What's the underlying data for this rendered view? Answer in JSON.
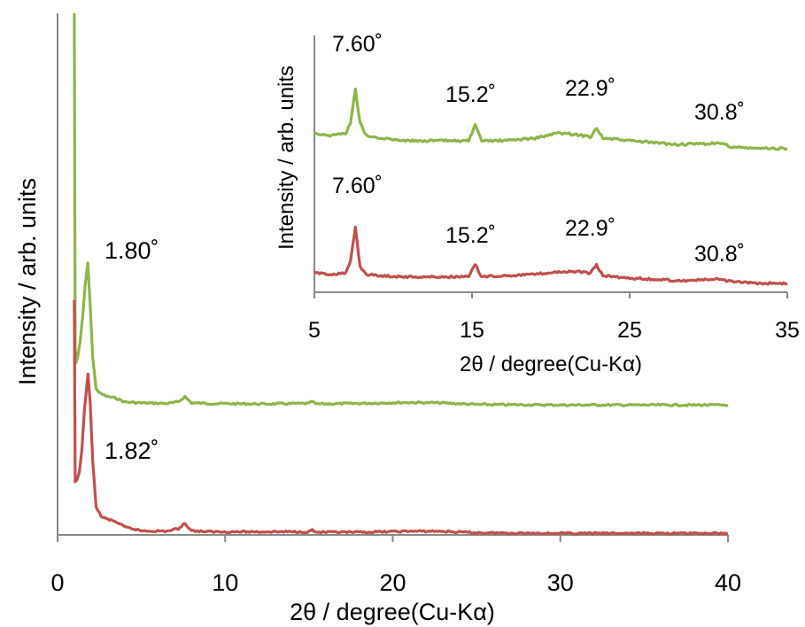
{
  "chart_data": [
    {
      "type": "line",
      "id": "main",
      "xlabel": "2θ / degree(Cu-Kα)",
      "ylabel": "Intensity / arb. units",
      "xlim": [
        0,
        40
      ],
      "xticks": [
        "0",
        "10",
        "20",
        "30",
        "40"
      ],
      "ylim": [
        0,
        1
      ],
      "grid": false,
      "legend": "none",
      "series": [
        {
          "color": "#8db44a",
          "x": [
            1.0,
            1.05,
            1.1,
            1.2,
            1.35,
            1.5,
            1.65,
            1.8,
            1.95,
            2.1,
            2.3,
            2.6,
            3.0,
            3.5,
            4.0,
            5.0,
            6.5,
            7.2,
            7.6,
            8.0,
            9.0,
            12.0,
            15.0,
            15.2,
            15.4,
            18.0,
            21.0,
            22.9,
            25.0,
            30.0,
            35.0,
            40.0
          ],
          "y": [
            1.0,
            0.36,
            0.33,
            0.34,
            0.37,
            0.42,
            0.48,
            0.52,
            0.44,
            0.34,
            0.28,
            0.27,
            0.265,
            0.262,
            0.255,
            0.253,
            0.252,
            0.255,
            0.265,
            0.253,
            0.252,
            0.251,
            0.252,
            0.256,
            0.251,
            0.252,
            0.254,
            0.253,
            0.25,
            0.249,
            0.249,
            0.249
          ]
        },
        {
          "color": "#c0504d",
          "x": [
            1.0,
            1.05,
            1.15,
            1.3,
            1.45,
            1.6,
            1.82,
            1.95,
            2.1,
            2.3,
            2.6,
            3.0,
            3.5,
            4.0,
            5.0,
            6.5,
            7.2,
            7.6,
            8.0,
            9.0,
            12.0,
            15.0,
            15.2,
            15.4,
            18.0,
            21.0,
            22.9,
            25.0,
            30.0,
            35.0,
            40.0
          ],
          "y": [
            0.45,
            0.1,
            0.105,
            0.12,
            0.16,
            0.24,
            0.31,
            0.25,
            0.14,
            0.055,
            0.035,
            0.03,
            0.025,
            0.015,
            0.008,
            0.007,
            0.012,
            0.022,
            0.008,
            0.006,
            0.006,
            0.006,
            0.01,
            0.005,
            0.005,
            0.007,
            0.007,
            0.004,
            0.003,
            0.003,
            0.003
          ]
        }
      ],
      "annotations": [
        {
          "text": "1.80˚",
          "x": 1.8
        },
        {
          "text": "1.82˚",
          "x": 1.82
        }
      ]
    },
    {
      "type": "line",
      "id": "inset",
      "xlabel": "2θ / degree(Cu-Kα)",
      "ylabel": "Intensity / arb. units",
      "xlim": [
        5,
        35
      ],
      "xticks": [
        "5",
        "15",
        "25",
        "35"
      ],
      "ylim": [
        0,
        1
      ],
      "grid": false,
      "legend": "none",
      "series": [
        {
          "color": "#8db44a",
          "x": [
            5.0,
            6.0,
            7.0,
            7.3,
            7.6,
            7.9,
            8.3,
            9.0,
            11.0,
            13.0,
            14.8,
            15.2,
            15.6,
            17.0,
            19.0,
            20.5,
            21.5,
            22.5,
            22.9,
            23.3,
            25.0,
            28.0,
            30.8,
            31.5,
            33.0,
            35.0
          ],
          "y": [
            0.62,
            0.61,
            0.62,
            0.66,
            0.79,
            0.66,
            0.61,
            0.6,
            0.59,
            0.59,
            0.59,
            0.65,
            0.59,
            0.59,
            0.6,
            0.62,
            0.615,
            0.605,
            0.64,
            0.6,
            0.59,
            0.575,
            0.58,
            0.565,
            0.56,
            0.56
          ]
        },
        {
          "color": "#c0504d",
          "x": [
            5.0,
            6.0,
            7.0,
            7.3,
            7.6,
            7.9,
            8.3,
            9.0,
            11.0,
            13.0,
            14.8,
            15.2,
            15.6,
            17.0,
            19.0,
            20.5,
            21.5,
            22.5,
            22.9,
            23.3,
            25.0,
            28.0,
            30.8,
            31.5,
            33.0,
            35.0
          ],
          "y": [
            0.075,
            0.07,
            0.075,
            0.12,
            0.255,
            0.1,
            0.07,
            0.065,
            0.06,
            0.06,
            0.06,
            0.11,
            0.06,
            0.065,
            0.07,
            0.08,
            0.08,
            0.075,
            0.105,
            0.065,
            0.055,
            0.045,
            0.05,
            0.04,
            0.035,
            0.035
          ]
        }
      ],
      "annotations": [
        {
          "text": "7.60˚",
          "x": 7.6
        },
        {
          "text": "15.2˚",
          "x": 15.2
        },
        {
          "text": "22.9˚",
          "x": 22.9
        },
        {
          "text": "30.8˚",
          "x": 30.8
        },
        {
          "text": "7.60˚",
          "x": 7.6
        },
        {
          "text": "15.2˚",
          "x": 15.2
        },
        {
          "text": "22.9˚",
          "x": 22.9
        },
        {
          "text": "30.8˚",
          "x": 30.8
        }
      ]
    }
  ]
}
